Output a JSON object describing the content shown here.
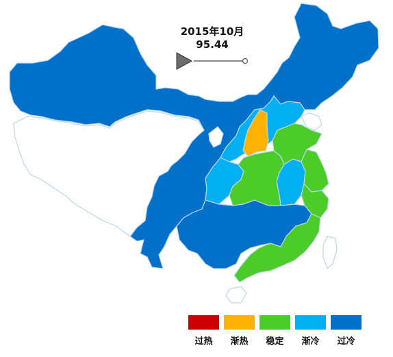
{
  "header": {
    "date": "2015年10月",
    "value": "95.44"
  },
  "colors": {
    "overheat": "#cc0000",
    "warming": "#ffb300",
    "stable": "#4ccc28",
    "cooling": "#00b0f0",
    "overcool": "#0070c8",
    "nodata": "#ffffff",
    "border": "#bcd7ee"
  },
  "legend": [
    {
      "label": "过热",
      "color": "#cc0000"
    },
    {
      "label": "渐热",
      "color": "#ffb300"
    },
    {
      "label": "稳定",
      "color": "#4ccc28"
    },
    {
      "label": "渐冷",
      "color": "#00b0f0"
    },
    {
      "label": "过冷",
      "color": "#0070c8"
    }
  ],
  "play_control": {
    "icon": "play-icon"
  }
}
